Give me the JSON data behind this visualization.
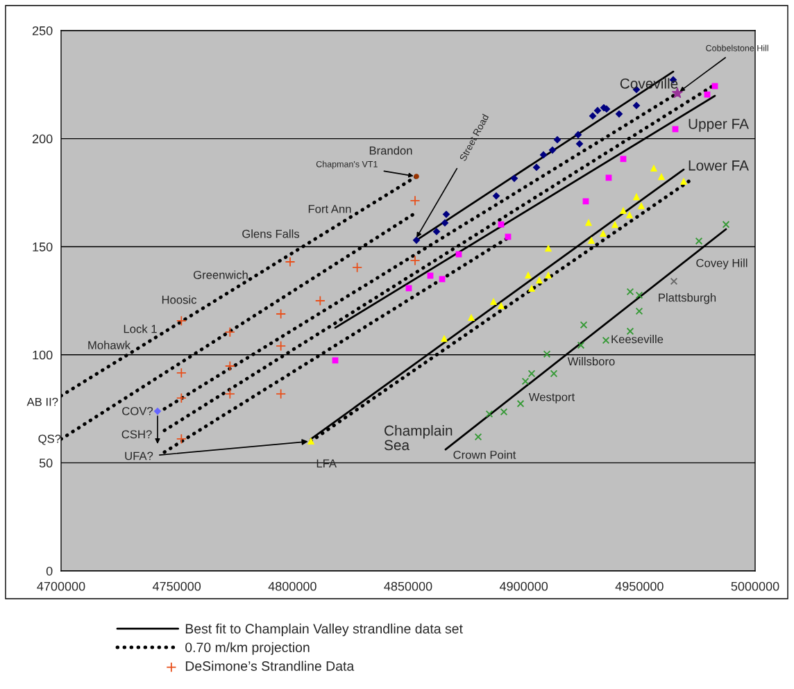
{
  "chart_data": {
    "type": "scatter",
    "xlim": [
      4700000,
      5000000
    ],
    "xticks": [
      4700000,
      4750000,
      4800000,
      4850000,
      4900000,
      4950000,
      5000000
    ],
    "ylim": [
      0,
      250
    ],
    "yticks": [
      0,
      50,
      100,
      150,
      200,
      250
    ],
    "grid": "y",
    "legend": "bottom",
    "series": [
      {
        "type": "line",
        "name": "Best fit to Champlain Valley strandline data set",
        "color": "#000000",
        "line_style": "solid",
        "marker": "none",
        "x": [
          4853600,
          4964600
        ],
        "values": [
          153,
          231
        ]
      },
      {
        "type": "line",
        "color": "#000000",
        "line_style": "solid",
        "marker": "none",
        "x": [
          4818500,
          4982600
        ],
        "values": [
          112.5,
          219.8
        ]
      },
      {
        "type": "line",
        "color": "#000000",
        "line_style": "solid",
        "marker": "none",
        "x": [
          4808000,
          4969100
        ],
        "values": [
          61,
          185.7
        ]
      },
      {
        "type": "line",
        "color": "#000000",
        "line_style": "solid",
        "marker": "none",
        "x": [
          4866200,
          4987400
        ],
        "values": [
          56.2,
          158.1
        ]
      },
      {
        "type": "line",
        "name": "0.70 m/km projection",
        "color": "#000000",
        "line_style": "dotted",
        "marker": "none",
        "x": [
          4700000,
          4853600
        ],
        "values": [
          81,
          182.5
        ]
      },
      {
        "type": "line",
        "color": "#000000",
        "line_style": "dotted",
        "marker": "none",
        "x": [
          4700000,
          4853000
        ],
        "values": [
          61,
          165.5
        ]
      },
      {
        "type": "line",
        "color": "#000000",
        "line_style": "dotted",
        "marker": "none",
        "x": [
          4744700,
          4966400
        ],
        "values": [
          75,
          221
        ]
      },
      {
        "type": "line",
        "color": "#000000",
        "line_style": "dotted",
        "marker": "none",
        "x": [
          4744700,
          4982600
        ],
        "values": [
          65,
          225
        ]
      },
      {
        "type": "line",
        "color": "#000000",
        "line_style": "dotted",
        "marker": "none",
        "x": [
          4744700,
          4893000
        ],
        "values": [
          55,
          154
        ]
      },
      {
        "type": "line",
        "color": "#000000",
        "line_style": "dotted",
        "marker": "none",
        "x": [
          4808000,
          4971800
        ],
        "values": [
          60,
          180.6
        ]
      },
      {
        "type": "scatter",
        "name": "DeSimone’s Strandline Data",
        "color": "#e8501c",
        "marker": "plus",
        "x": [
          4853000,
          4853000,
          4828000,
          4812000,
          4799000,
          4795000,
          4752000,
          4773000,
          4795000,
          4752000,
          4773000,
          4752000,
          4773000,
          4795000,
          4752000
        ],
        "values": [
          171.3,
          143.6,
          140.4,
          125.0,
          143.0,
          118.9,
          115.7,
          110.5,
          104.1,
          91.6,
          94.8,
          80.0,
          81.9,
          81.9,
          61.1
        ]
      },
      {
        "type": "scatter",
        "color": "#993300",
        "marker": "circle",
        "x": [
          4853600
        ],
        "values": [
          182.5
        ]
      },
      {
        "type": "scatter",
        "color": "#000080",
        "marker": "diamond",
        "x": [
          4853600,
          4862300,
          4865900,
          4866500,
          4888100,
          4895900,
          4905500,
          4908500,
          4912400,
          4914500,
          4924100,
          4923500,
          4929800,
          4931900,
          4934600,
          4935800,
          4941200,
          4948700,
          4948700,
          4964600
        ],
        "values": [
          153,
          157,
          161,
          165,
          173.5,
          181.6,
          186.7,
          192.5,
          194.7,
          199.5,
          197.6,
          201.8,
          210.5,
          213,
          214.3,
          213.7,
          211.4,
          222.7,
          215.3,
          227.2
        ]
      },
      {
        "type": "scatter",
        "color": "#993399",
        "marker": "star",
        "x": [
          4966400
        ],
        "values": [
          221
        ]
      },
      {
        "type": "scatter",
        "color": "#ff00ff",
        "marker": "square",
        "x": [
          4818500,
          4850300,
          4859600,
          4864700,
          4871900,
          4890200,
          4893200,
          4926800,
          4936700,
          4943000,
          4965500,
          4979300,
          4982600
        ],
        "values": [
          97.4,
          130.8,
          136.6,
          135,
          146.5,
          160.3,
          154.6,
          171,
          181.9,
          190.6,
          204.4,
          220.4,
          224.3
        ]
      },
      {
        "type": "scatter",
        "color": "#ffff00",
        "marker": "triangle",
        "x": [
          4808000,
          4865600,
          4877300,
          4886900,
          4890200,
          4901900,
          4903400,
          4906700,
          4910600,
          4910600,
          4928000,
          4929200,
          4934300,
          4939400,
          4943000,
          4945700,
          4948700,
          4950800,
          4956200,
          4959500,
          4969100
        ],
        "values": [
          60.1,
          107.6,
          117.3,
          124.7,
          122.8,
          136.9,
          130.8,
          134.6,
          136.9,
          149.4,
          161.3,
          153,
          156.2,
          160.3,
          166.8,
          164.8,
          173.2,
          169,
          186.4,
          182.5,
          180.3
        ]
      },
      {
        "type": "scatter",
        "color": "#339933",
        "marker": "cross",
        "x": [
          4880300,
          4885100,
          4891400,
          4898600,
          4900700,
          4903400,
          4910000,
          4913000,
          4924700,
          4925900,
          4935500,
          4946000,
          4946000,
          4949900,
          4949900,
          4975700,
          4987400
        ],
        "values": [
          62.0,
          72.6,
          73.6,
          77.4,
          87.7,
          91.3,
          100.3,
          91.3,
          104.4,
          113.8,
          106.7,
          110.9,
          129.2,
          127.6,
          120.2,
          152.6,
          160.3
        ]
      },
      {
        "type": "scatter",
        "color": "#666666",
        "marker": "cross",
        "x": [
          4964900
        ],
        "values": [
          134
        ]
      },
      {
        "type": "scatter",
        "color": "#6666ff",
        "marker": "diamond",
        "x": [
          4741700
        ],
        "values": [
          73.9
        ]
      }
    ],
    "annotations": [
      {
        "text": "Coveville",
        "x": 4954100,
        "y": 224.9
      },
      {
        "text": "Cobbelstone Hill",
        "x": 4966400,
        "y": 221
      },
      "Upper FA",
      "Lower FA",
      "Covey Hill",
      "Plattsburgh",
      "Keeseville",
      "Willsboro",
      "Westport",
      "Champlain\nSea",
      "Crown Point",
      {
        "text": "LFA",
        "x": 4808000,
        "y": 60
      },
      {
        "text": "UFA?",
        "x": 4808000,
        "y": 60
      },
      "CSH?",
      "COV?",
      {
        "text": "QS?",
        "x": 4700000,
        "y": 60.7
      },
      "AB II?",
      "Mohawk",
      "Lock 1",
      "Hoosic",
      "Greenwich",
      "Glens Falls",
      "Fort Ann",
      "Brandon",
      {
        "text": "Chapman's VT1",
        "x": 4853600,
        "y": 182.5
      },
      {
        "text": "Street Road",
        "x": 4853000,
        "y": 153
      }
    ]
  }
}
